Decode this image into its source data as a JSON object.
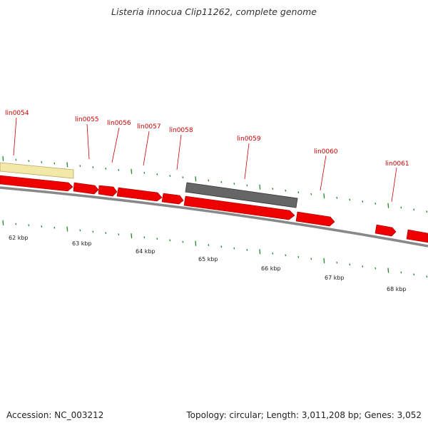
{
  "title": "Listeria innocua Clip11262, complete genome",
  "accession": "Accession: NC_003212",
  "stats": "Topology: circular; Length: 3,011,208 bp; Genes: 3,052",
  "colors": {
    "cds": "#ee0000",
    "cds_highlight": "#666666",
    "feature_pale": "#f2e8a8",
    "tick": "#228822",
    "backbone": "#888888",
    "label": "#cc0000"
  },
  "gene_labels": [
    "lin0054",
    "lin0055",
    "lin0056",
    "lin0057",
    "lin0058",
    "lin0059",
    "lin0060",
    "lin0061"
  ],
  "kbp_labels": [
    "62 kbp",
    "63 kbp",
    "64 kbp",
    "65 kbp",
    "66 kbp",
    "67 kbp",
    "68 kbp"
  ]
}
